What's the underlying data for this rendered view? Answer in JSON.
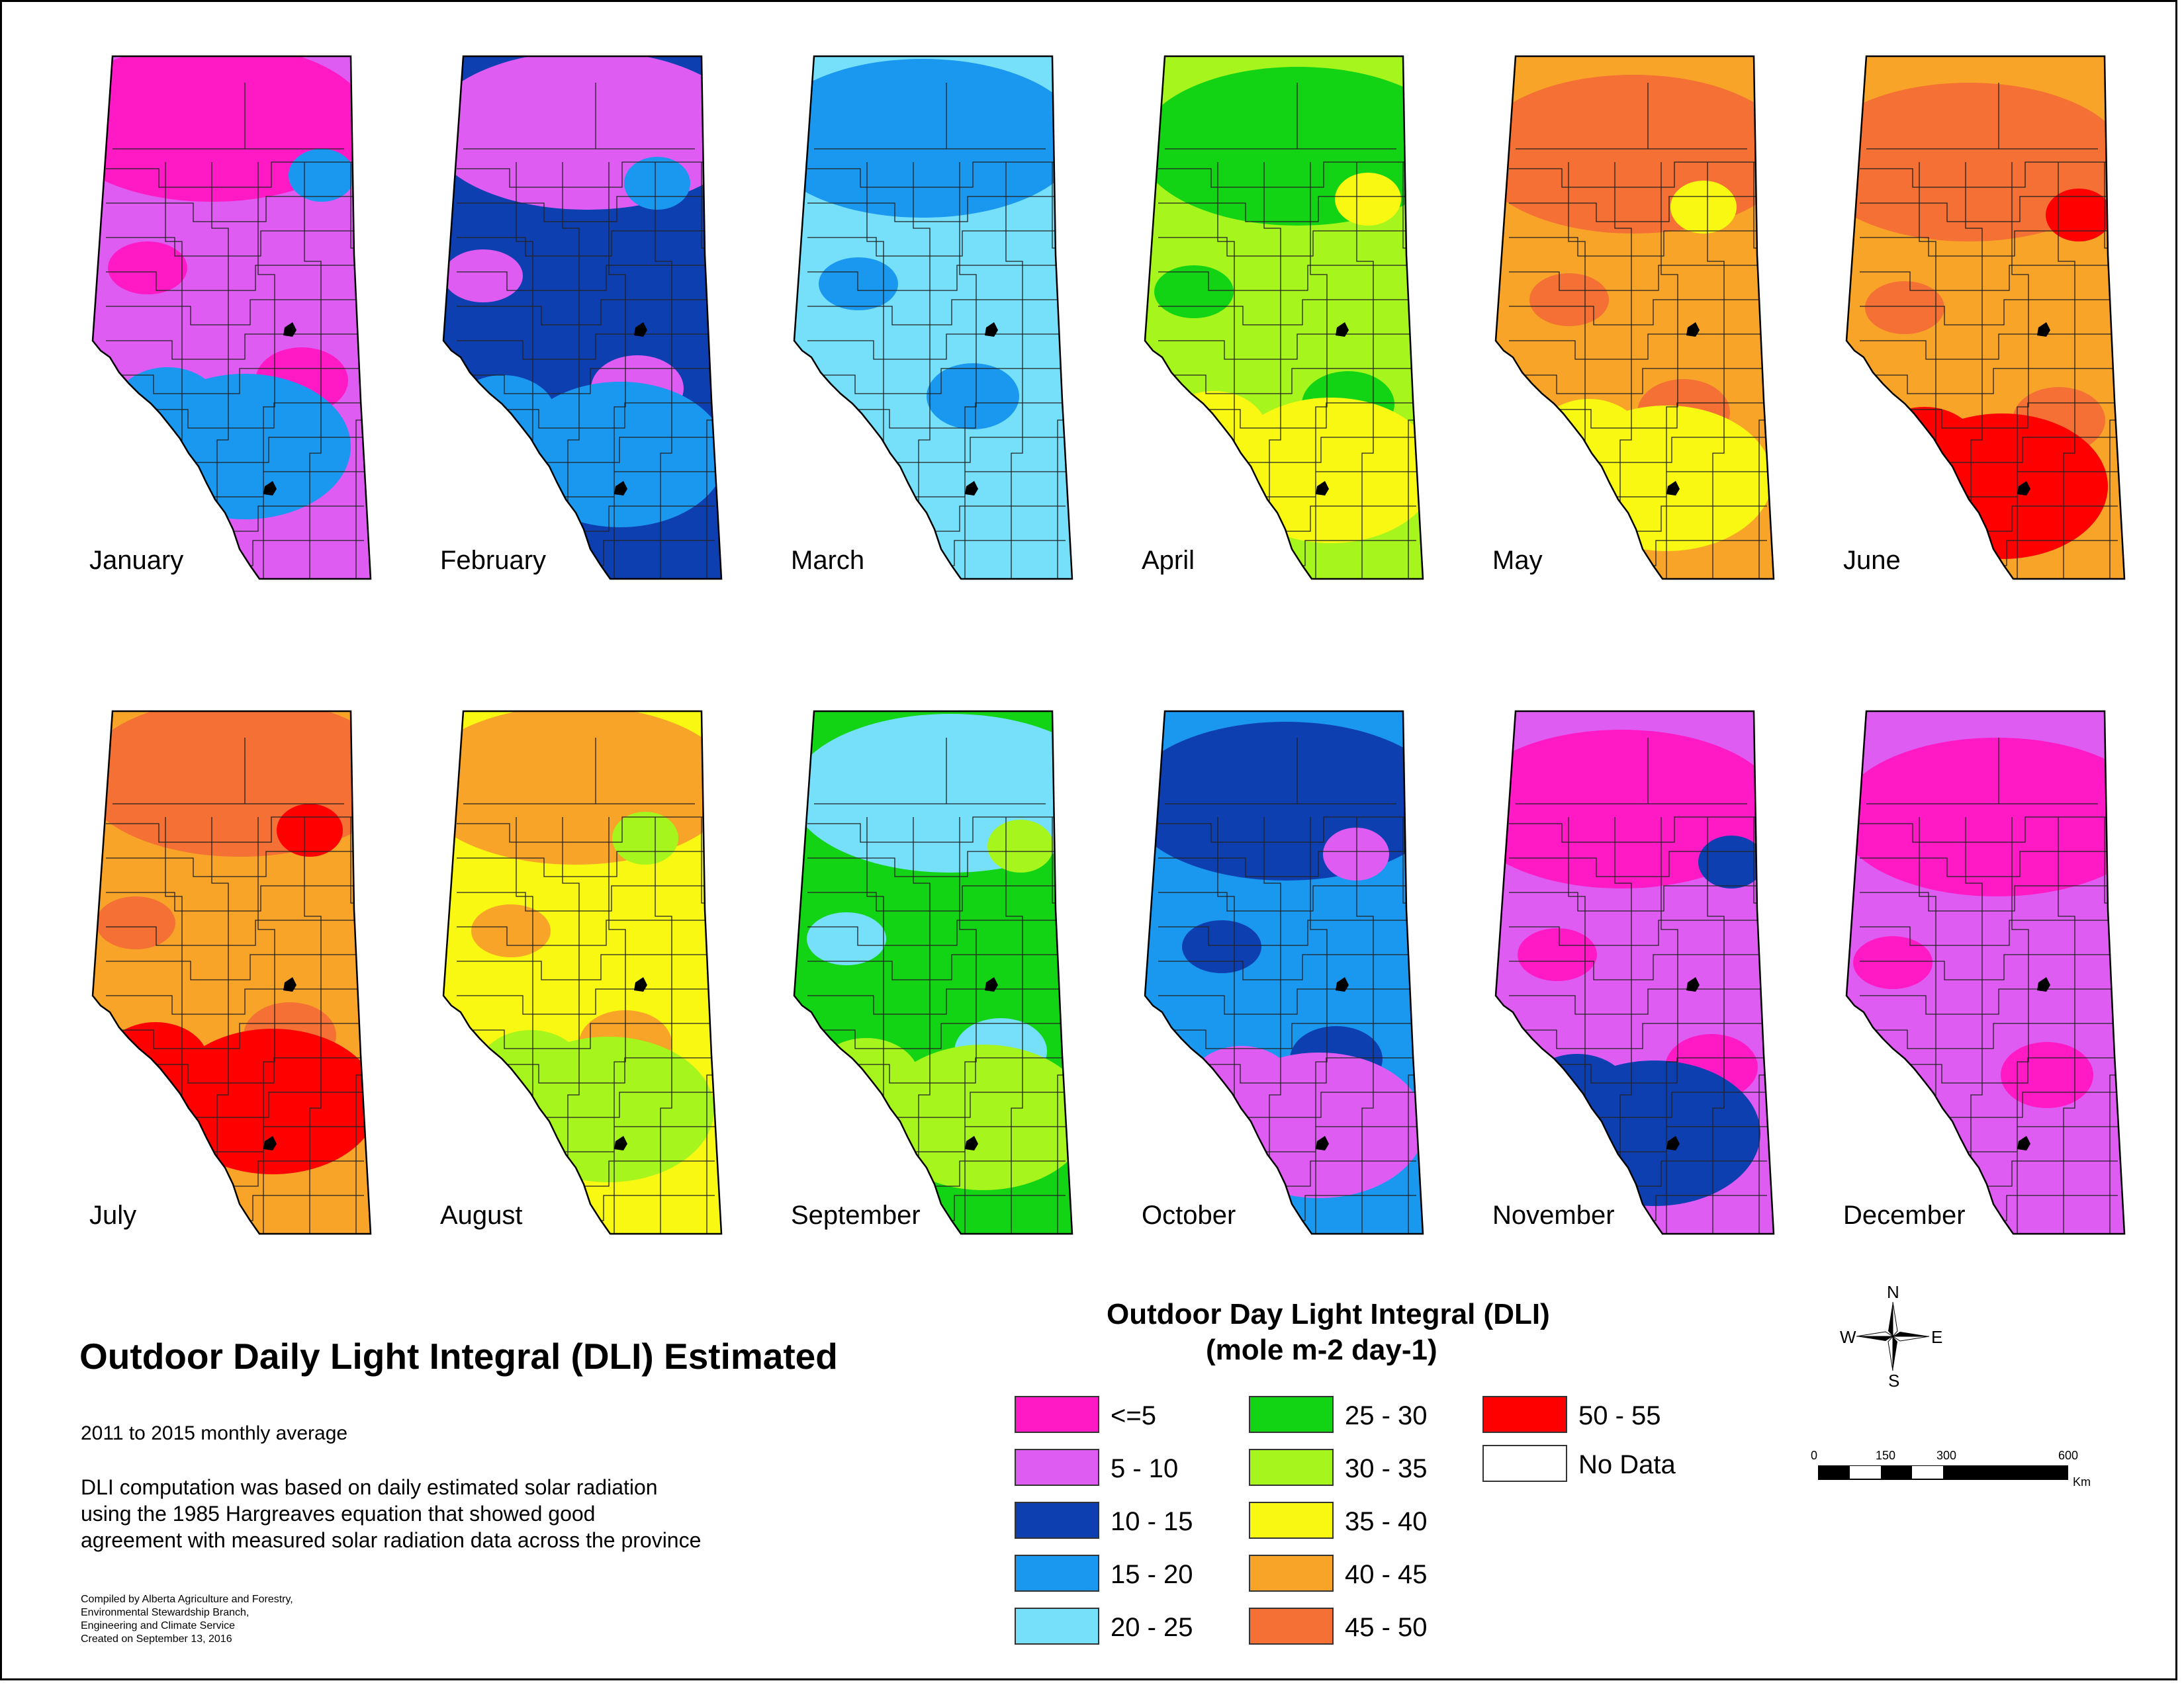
{
  "map": {
    "title": "Outdoor Daily Light Integral (DLI) Estimated",
    "subtitle": "2011 to 2015 monthly average",
    "description": [
      "DLI computation was based on daily estimated solar radiation",
      "using the 1985 Hargreaves equation that showed good",
      "agreement with measured solar radiation data across the province"
    ],
    "credit": [
      "Compiled by Alberta Agriculture and Forestry,",
      "Environmental Stewardship Branch,",
      "Engineering and Climate Service",
      "Created on September 13, 2016"
    ]
  },
  "legend": {
    "title_line1": "Outdoor Day Light Integral (DLI)",
    "title_line2": "(mole m-2 day-1)",
    "classes": [
      {
        "label": "<=5",
        "color": "#ff1ac6"
      },
      {
        "label": "5 - 10",
        "color": "#df5cf2"
      },
      {
        "label": "10 - 15",
        "color": "#0e3fb0"
      },
      {
        "label": "15 - 20",
        "color": "#1a98f0"
      },
      {
        "label": "20 - 25",
        "color": "#76e0fb"
      },
      {
        "label": "25 - 30",
        "color": "#13d315"
      },
      {
        "label": "30 - 35",
        "color": "#a6f51d"
      },
      {
        "label": "35 - 40",
        "color": "#f8f812"
      },
      {
        "label": "40 - 45",
        "color": "#f8a428"
      },
      {
        "label": "45 - 50",
        "color": "#f47035"
      },
      {
        "label": "50 - 55",
        "color": "#ff0000"
      },
      {
        "label": "No Data",
        "color": "#ffffff"
      }
    ]
  },
  "months": [
    {
      "name": "January",
      "base": "5 - 10",
      "patches": [
        "<=5",
        "15 - 20"
      ]
    },
    {
      "name": "February",
      "base": "10 - 15",
      "patches": [
        "5 - 10",
        "15 - 20"
      ]
    },
    {
      "name": "March",
      "base": "20 - 25",
      "patches": [
        "15 - 20"
      ]
    },
    {
      "name": "April",
      "base": "30 - 35",
      "patches": [
        "25 - 30",
        "35 - 40"
      ]
    },
    {
      "name": "May",
      "base": "40 - 45",
      "patches": [
        "45 - 50",
        "35 - 40"
      ]
    },
    {
      "name": "June",
      "base": "40 - 45",
      "patches": [
        "45 - 50",
        "50 - 55"
      ]
    },
    {
      "name": "July",
      "base": "40 - 45",
      "patches": [
        "45 - 50",
        "50 - 55"
      ]
    },
    {
      "name": "August",
      "base": "35 - 40",
      "patches": [
        "40 - 45",
        "30 - 35"
      ]
    },
    {
      "name": "September",
      "base": "25 - 30",
      "patches": [
        "20 - 25",
        "30 - 35"
      ]
    },
    {
      "name": "October",
      "base": "15 - 20",
      "patches": [
        "10 - 15",
        "5 - 10"
      ]
    },
    {
      "name": "November",
      "base": "5 - 10",
      "patches": [
        "<=5",
        "10 - 15"
      ]
    },
    {
      "name": "December",
      "base": "5 - 10",
      "patches": [
        "<=5"
      ]
    }
  ],
  "compass": {
    "n": "N",
    "s": "S",
    "e": "E",
    "w": "W"
  },
  "scale": {
    "ticks": [
      "0",
      "150",
      "300",
      "600"
    ],
    "unit": "Km"
  }
}
